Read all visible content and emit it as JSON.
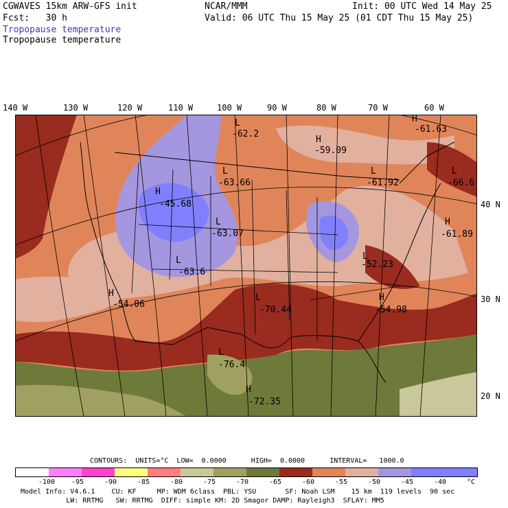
{
  "header": {
    "model": "CGWAVES 15km ARW-GFS init",
    "org": "NCAR/MMM",
    "init": "Init: 00 UTC Wed 14 May 25",
    "fcst": "Fcst:   30 h",
    "valid": "Valid: 06 UTC Thu 15 May 25 (01 CDT Thu 15 May 25)",
    "field1": "Tropopause temperature",
    "field2": "Tropopause temperature"
  },
  "map": {
    "lon_labels": [
      "140 W",
      "130 W",
      "120 W",
      "110 W",
      "100 W",
      "90 W",
      "80 W",
      "70 W",
      "60 W"
    ],
    "lat_labels": [
      "40 N",
      "30 N",
      "20 N"
    ],
    "highs_lows": [
      {
        "letter": "L",
        "value": "-62.2"
      },
      {
        "letter": "H",
        "value": "-59.09"
      },
      {
        "letter": "H",
        "value": "-61.63"
      },
      {
        "letter": "L",
        "value": "-63.66"
      },
      {
        "letter": "L",
        "value": "-61.92"
      },
      {
        "letter": "L",
        "value": "-66.6"
      },
      {
        "letter": "H",
        "value": "-45.68"
      },
      {
        "letter": "L",
        "value": "-63.07"
      },
      {
        "letter": "H",
        "value": "-61.89"
      },
      {
        "letter": "L",
        "value": "-63.6"
      },
      {
        "letter": "L",
        "value": "-52.23"
      },
      {
        "letter": "H",
        "value": "-54.06"
      },
      {
        "letter": "L",
        "value": "-70.44"
      },
      {
        "letter": "H",
        "value": "-54.98"
      },
      {
        "letter": "L",
        "value": "-76.4"
      },
      {
        "letter": "H",
        "value": "-72.35"
      }
    ]
  },
  "contours": {
    "line": "CONTOURS:  UNITS=°C  LOW=  0.0000      HIGH=  0.0000      INTERVAL=   1000.0"
  },
  "legend": {
    "colors": [
      "#ffffff",
      "#ff80ff",
      "#ff44cc",
      "#ffff80",
      "#ff8080",
      "#c8c89a",
      "#a0a060",
      "#6e7a3a",
      "#992b1f",
      "#e0855a",
      "#e2b09e",
      "#a596e0",
      "#8080ff",
      "#8080ff"
    ],
    "ticks": [
      "-100",
      "-95",
      "-90",
      "-85",
      "-80",
      "-75",
      "-70",
      "-65",
      "-60",
      "-55",
      "-50",
      "-45",
      "-40",
      "°C"
    ]
  },
  "model_info": {
    "line1": "Model Info: V4.6.1    CU: KF     MP: WDM 6class  PBL: YSU       SF: Noah LSM    15 km  119 levels  90 sec",
    "line2": "           LW: RRTMG   SW: RRTMG  DIFF: simple KM: 2D Smagor DAMP: Rayleigh3  SFLAY: MM5"
  }
}
